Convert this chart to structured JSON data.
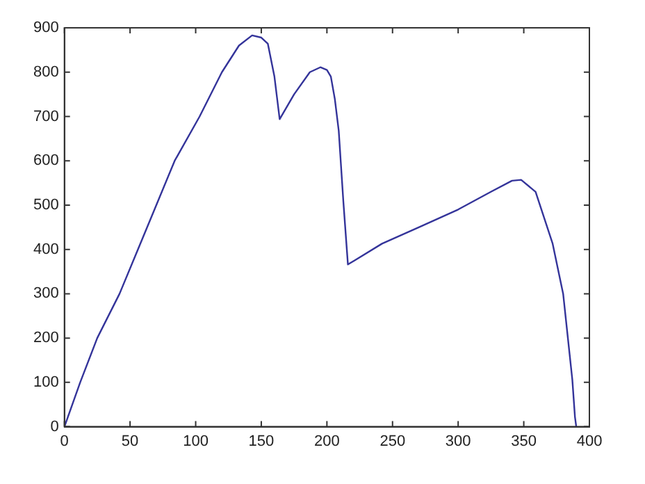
{
  "chart_data": {
    "type": "line",
    "x": [
      0,
      12,
      25,
      42,
      56,
      70,
      84,
      103,
      120,
      133,
      143,
      150,
      155,
      160,
      164,
      175,
      187,
      195,
      200,
      203,
      206,
      209,
      212.5,
      216,
      242,
      270,
      300,
      325,
      341,
      348,
      359,
      372,
      380,
      387,
      389,
      390
    ],
    "series": [
      {
        "color": "#34349a",
        "values": [
          0,
          100,
          200,
          300,
          400,
          500,
          600,
          700,
          800,
          860,
          883,
          878,
          864,
          790,
          694,
          750,
          800,
          811,
          805,
          790,
          740,
          668,
          509,
          366,
          413,
          450,
          490,
          530,
          555,
          557,
          530,
          413,
          300,
          106,
          22,
          0
        ]
      }
    ],
    "xlim": [
      0,
      400
    ],
    "xticks": [
      0,
      50,
      100,
      150,
      200,
      250,
      300,
      350,
      400
    ],
    "ylim": [
      0,
      900
    ],
    "yticks": [
      0,
      100,
      200,
      300,
      400,
      500,
      600,
      700,
      800,
      900
    ],
    "grid": false,
    "legend": false,
    "marker": "none",
    "line_style": "solid"
  }
}
